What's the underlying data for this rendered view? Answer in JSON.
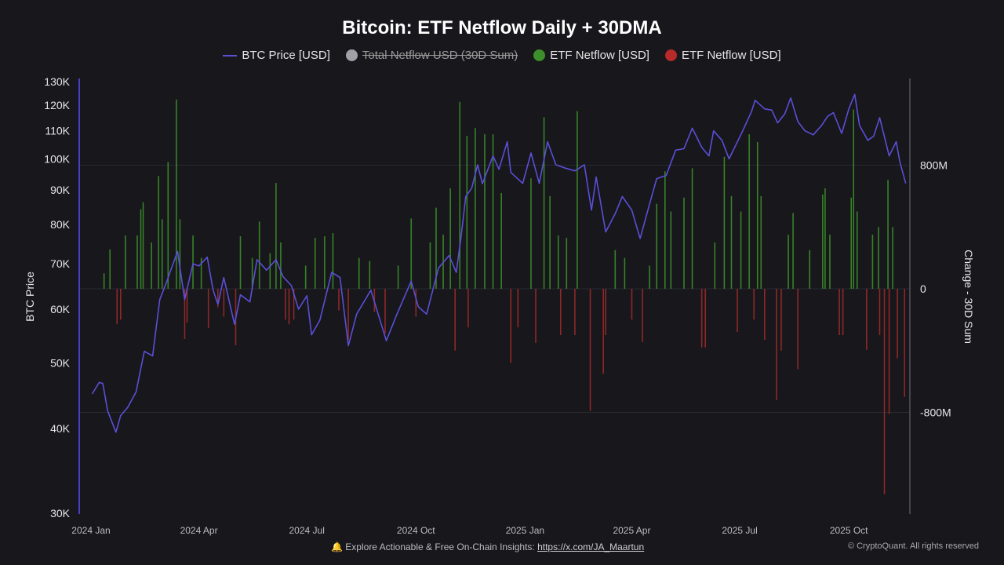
{
  "title": "Bitcoin: ETF Netflow Daily + 30DMA",
  "legend": [
    {
      "label": "BTC Price [USD]",
      "color": "#5b4fd6",
      "marker": "line",
      "hidden": false
    },
    {
      "label": "Total Netflow USD (30D Sum)",
      "color": "#a0a0a8",
      "marker": "dot",
      "hidden": true
    },
    {
      "label": "ETF Netflow [USD]",
      "color": "#3c8f2a",
      "marker": "dot",
      "hidden": false
    },
    {
      "label": "ETF Netflow [USD]",
      "color": "#b62a2a",
      "marker": "dot",
      "hidden": false
    }
  ],
  "footer": {
    "insight_prefix": "Explore Actionable & Free On-Chain Insights: ",
    "insight_link": "https://x.com/JA_Maartun",
    "copyright": "© CryptoQuant. All rights reserved",
    "bell_icon": "bell-icon"
  },
  "chart_data": {
    "type": "bar+line",
    "title": "Bitcoin: ETF Netflow Daily + 30DMA",
    "ylabel_left": "BTC Price",
    "ylabel_right": "Change - 30D Sum",
    "left_axis": {
      "scale": "log",
      "range": [
        30000,
        130000
      ],
      "ticks": [
        "130K",
        "120K",
        "110K",
        "100K",
        "90K",
        "80K",
        "70K",
        "60K",
        "50K",
        "40K",
        "30K"
      ],
      "tick_values": [
        130000,
        120000,
        110000,
        100000,
        90000,
        80000,
        70000,
        60000,
        50000,
        40000,
        30000
      ]
    },
    "right_axis": {
      "scale": "linear",
      "range": [
        -1450,
        1360
      ],
      "unit": "M USD",
      "ticks": [
        "800M",
        "0",
        "-800M"
      ],
      "tick_values": [
        800,
        0,
        -800
      ]
    },
    "x_axis": {
      "range": [
        "2023-12-22",
        "2025-11-20"
      ],
      "ticks": [
        "2024 Jan",
        "2024 Apr",
        "2024 Jul",
        "2024 Oct",
        "2025 Jan",
        "2025 Apr",
        "2025 Jul",
        "2025 Oct"
      ],
      "tick_dates": [
        "2024-01-01",
        "2024-04-01",
        "2024-07-01",
        "2024-10-01",
        "2025-01-01",
        "2025-04-01",
        "2025-07-01",
        "2025-10-01"
      ]
    },
    "grid": true,
    "legend_position": "top",
    "colors": {
      "price": "#5b4fd6",
      "inflow": "#3c8f2a",
      "outflow": "#9c2a2a"
    },
    "price_series": {
      "name": "BTC Price [USD]",
      "points": [
        [
          "2024-01-02",
          45000
        ],
        [
          "2024-01-08",
          46800
        ],
        [
          "2024-01-11",
          46600
        ],
        [
          "2024-01-15",
          42500
        ],
        [
          "2024-01-22",
          39500
        ],
        [
          "2024-01-26",
          41800
        ],
        [
          "2024-02-01",
          43000
        ],
        [
          "2024-02-08",
          45300
        ],
        [
          "2024-02-15",
          52000
        ],
        [
          "2024-02-22",
          51200
        ],
        [
          "2024-02-28",
          62000
        ],
        [
          "2024-03-05",
          66000
        ],
        [
          "2024-03-08",
          68300
        ],
        [
          "2024-03-14",
          73000
        ],
        [
          "2024-03-20",
          62000
        ],
        [
          "2024-03-27",
          70000
        ],
        [
          "2024-04-01",
          69500
        ],
        [
          "2024-04-08",
          71600
        ],
        [
          "2024-04-13",
          64000
        ],
        [
          "2024-04-17",
          61000
        ],
        [
          "2024-04-22",
          66800
        ],
        [
          "2024-05-01",
          57000
        ],
        [
          "2024-05-06",
          63000
        ],
        [
          "2024-05-14",
          61500
        ],
        [
          "2024-05-20",
          71000
        ],
        [
          "2024-05-28",
          68500
        ],
        [
          "2024-06-05",
          71000
        ],
        [
          "2024-06-11",
          67000
        ],
        [
          "2024-06-18",
          65000
        ],
        [
          "2024-06-24",
          60000
        ],
        [
          "2024-07-01",
          62800
        ],
        [
          "2024-07-05",
          55000
        ],
        [
          "2024-07-12",
          57800
        ],
        [
          "2024-07-22",
          68000
        ],
        [
          "2024-07-29",
          66800
        ],
        [
          "2024-08-05",
          53000
        ],
        [
          "2024-08-12",
          59000
        ],
        [
          "2024-08-24",
          64000
        ],
        [
          "2024-09-06",
          53900
        ],
        [
          "2024-09-15",
          59000
        ],
        [
          "2024-09-27",
          66000
        ],
        [
          "2024-10-03",
          60500
        ],
        [
          "2024-10-10",
          59000
        ],
        [
          "2024-10-20",
          69000
        ],
        [
          "2024-10-29",
          72000
        ],
        [
          "2024-11-04",
          68000
        ],
        [
          "2024-11-08",
          76500
        ],
        [
          "2024-11-12",
          88000
        ],
        [
          "2024-11-17",
          90500
        ],
        [
          "2024-11-22",
          98000
        ],
        [
          "2024-11-26",
          91900
        ],
        [
          "2024-12-05",
          101000
        ],
        [
          "2024-12-10",
          96500
        ],
        [
          "2024-12-17",
          106000
        ],
        [
          "2024-12-20",
          95500
        ],
        [
          "2024-12-30",
          92000
        ],
        [
          "2025-01-06",
          102000
        ],
        [
          "2025-01-13",
          92000
        ],
        [
          "2025-01-20",
          106000
        ],
        [
          "2025-01-27",
          98000
        ],
        [
          "2025-02-03",
          97000
        ],
        [
          "2025-02-12",
          96000
        ],
        [
          "2025-02-20",
          98000
        ],
        [
          "2025-02-26",
          84000
        ],
        [
          "2025-03-02",
          94000
        ],
        [
          "2025-03-10",
          78000
        ],
        [
          "2025-03-18",
          83000
        ],
        [
          "2025-03-24",
          88000
        ],
        [
          "2025-04-01",
          84000
        ],
        [
          "2025-04-08",
          76300
        ],
        [
          "2025-04-15",
          84500
        ],
        [
          "2025-04-22",
          93500
        ],
        [
          "2025-04-30",
          94500
        ],
        [
          "2025-05-08",
          103000
        ],
        [
          "2025-05-15",
          103500
        ],
        [
          "2025-05-22",
          111000
        ],
        [
          "2025-05-30",
          104000
        ],
        [
          "2025-06-05",
          101000
        ],
        [
          "2025-06-09",
          110000
        ],
        [
          "2025-06-16",
          106500
        ],
        [
          "2025-06-22",
          100000
        ],
        [
          "2025-07-03",
          109500
        ],
        [
          "2025-07-11",
          117500
        ],
        [
          "2025-07-14",
          122000
        ],
        [
          "2025-07-22",
          118500
        ],
        [
          "2025-07-28",
          118000
        ],
        [
          "2025-08-02",
          113000
        ],
        [
          "2025-08-08",
          116500
        ],
        [
          "2025-08-13",
          123000
        ],
        [
          "2025-08-19",
          113500
        ],
        [
          "2025-08-25",
          110000
        ],
        [
          "2025-09-01",
          108500
        ],
        [
          "2025-09-08",
          112000
        ],
        [
          "2025-09-13",
          115500
        ],
        [
          "2025-09-18",
          117000
        ],
        [
          "2025-09-25",
          109000
        ],
        [
          "2025-10-01",
          118500
        ],
        [
          "2025-10-06",
          124500
        ],
        [
          "2025-10-10",
          112000
        ],
        [
          "2025-10-17",
          106500
        ],
        [
          "2025-10-22",
          108000
        ],
        [
          "2025-10-27",
          115000
        ],
        [
          "2025-11-04",
          101000
        ],
        [
          "2025-11-10",
          106000
        ],
        [
          "2025-11-13",
          99000
        ],
        [
          "2025-11-18",
          92000
        ]
      ]
    },
    "netflow_series": {
      "name": "ETF Netflow [USD]",
      "unit": "M USD",
      "bars": [
        [
          "2024-01-12",
          100
        ],
        [
          "2024-01-17",
          255
        ],
        [
          "2024-01-23",
          -230
        ],
        [
          "2024-01-26",
          -200
        ],
        [
          "2024-01-30",
          345
        ],
        [
          "2024-02-09",
          345
        ],
        [
          "2024-02-12",
          515
        ],
        [
          "2024-02-14",
          560
        ],
        [
          "2024-02-21",
          300
        ],
        [
          "2024-02-27",
          730
        ],
        [
          "2024-03-01",
          450
        ],
        [
          "2024-03-06",
          820
        ],
        [
          "2024-03-13",
          1225
        ],
        [
          "2024-03-16",
          450
        ],
        [
          "2024-03-20",
          -325
        ],
        [
          "2024-03-22",
          -220
        ],
        [
          "2024-03-27",
          345
        ],
        [
          "2024-04-03",
          200
        ],
        [
          "2024-04-09",
          -255
        ],
        [
          "2024-04-17",
          -120
        ],
        [
          "2024-04-22",
          -180
        ],
        [
          "2024-05-02",
          -365
        ],
        [
          "2024-05-06",
          340
        ],
        [
          "2024-05-16",
          200
        ],
        [
          "2024-05-22",
          435
        ],
        [
          "2024-05-31",
          230
        ],
        [
          "2024-06-05",
          685
        ],
        [
          "2024-06-09",
          300
        ],
        [
          "2024-06-13",
          -200
        ],
        [
          "2024-06-16",
          -230
        ],
        [
          "2024-06-20",
          -200
        ],
        [
          "2024-06-30",
          150
        ],
        [
          "2024-07-08",
          330
        ],
        [
          "2024-07-16",
          340
        ],
        [
          "2024-07-23",
          360
        ],
        [
          "2024-07-28",
          -140
        ],
        [
          "2024-08-05",
          -330
        ],
        [
          "2024-08-14",
          200
        ],
        [
          "2024-08-23",
          180
        ],
        [
          "2024-08-27",
          -150
        ],
        [
          "2024-09-05",
          -290
        ],
        [
          "2024-09-16",
          150
        ],
        [
          "2024-09-27",
          455
        ],
        [
          "2024-10-01",
          -180
        ],
        [
          "2024-10-13",
          300
        ],
        [
          "2024-10-18",
          525
        ],
        [
          "2024-10-24",
          350
        ],
        [
          "2024-10-30",
          650
        ],
        [
          "2024-11-03",
          -400
        ],
        [
          "2024-11-07",
          1210
        ],
        [
          "2024-11-13",
          990
        ],
        [
          "2024-11-14",
          -250
        ],
        [
          "2024-11-20",
          1040
        ],
        [
          "2024-11-28",
          1000
        ],
        [
          "2024-12-05",
          1000
        ],
        [
          "2024-12-12",
          620
        ],
        [
          "2024-12-20",
          -480
        ],
        [
          "2024-12-26",
          -250
        ],
        [
          "2025-01-06",
          715
        ],
        [
          "2025-01-10",
          -350
        ],
        [
          "2025-01-17",
          1110
        ],
        [
          "2025-01-22",
          600
        ],
        [
          "2025-01-29",
          345
        ],
        [
          "2025-01-31",
          -300
        ],
        [
          "2025-02-05",
          330
        ],
        [
          "2025-02-12",
          -300
        ],
        [
          "2025-02-14",
          1150
        ],
        [
          "2025-02-25",
          -790
        ],
        [
          "2025-03-08",
          -550
        ],
        [
          "2025-03-10",
          -300
        ],
        [
          "2025-03-18",
          250
        ],
        [
          "2025-03-26",
          200
        ],
        [
          "2025-04-01",
          -200
        ],
        [
          "2025-04-10",
          -345
        ],
        [
          "2025-04-16",
          150
        ],
        [
          "2025-04-22",
          550
        ],
        [
          "2025-04-29",
          760
        ],
        [
          "2025-05-04",
          500
        ],
        [
          "2025-05-15",
          590
        ],
        [
          "2025-05-22",
          780
        ],
        [
          "2025-05-30",
          -380
        ],
        [
          "2025-06-02",
          -380
        ],
        [
          "2025-06-10",
          300
        ],
        [
          "2025-06-18",
          855
        ],
        [
          "2025-06-24",
          600
        ],
        [
          "2025-06-29",
          -280
        ],
        [
          "2025-07-02",
          500
        ],
        [
          "2025-07-09",
          1000
        ],
        [
          "2025-07-13",
          -200
        ],
        [
          "2025-07-16",
          950
        ],
        [
          "2025-07-19",
          600
        ],
        [
          "2025-07-22",
          -330
        ],
        [
          "2025-08-01",
          -720
        ],
        [
          "2025-08-05",
          -400
        ],
        [
          "2025-08-11",
          350
        ],
        [
          "2025-08-15",
          490
        ],
        [
          "2025-08-19",
          -520
        ],
        [
          "2025-08-29",
          250
        ],
        [
          "2025-09-09",
          610
        ],
        [
          "2025-09-11",
          650
        ],
        [
          "2025-09-15",
          350
        ],
        [
          "2025-09-23",
          -300
        ],
        [
          "2025-09-26",
          -300
        ],
        [
          "2025-10-03",
          590
        ],
        [
          "2025-10-05",
          1160
        ],
        [
          "2025-10-08",
          500
        ],
        [
          "2025-10-16",
          -395
        ],
        [
          "2025-10-21",
          350
        ],
        [
          "2025-10-26",
          400
        ],
        [
          "2025-10-27",
          -300
        ],
        [
          "2025-10-31",
          -1330
        ],
        [
          "2025-11-03",
          705
        ],
        [
          "2025-11-04",
          -810
        ],
        [
          "2025-11-07",
          400
        ],
        [
          "2025-11-11",
          -450
        ],
        [
          "2025-11-17",
          -700
        ]
      ]
    }
  }
}
